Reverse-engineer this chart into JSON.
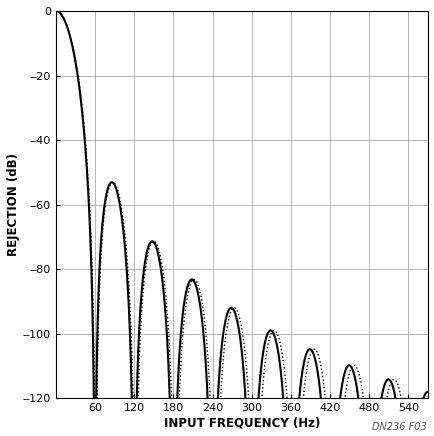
{
  "title": "",
  "xlabel": "INPUT FREQUENCY (Hz)",
  "ylabel": "REJECTION (dB)",
  "annotation": "DN236 F03",
  "xlim": [
    0,
    570
  ],
  "ylim": [
    -120,
    0
  ],
  "yticks": [
    0,
    -20,
    -40,
    -60,
    -80,
    -100,
    -120
  ],
  "ytick_labels": [
    "0",
    "‒20",
    "‒40",
    "‒60",
    "‒80",
    "‒100",
    "‒120"
  ],
  "xticks": [
    60,
    120,
    180,
    240,
    300,
    360,
    420,
    480,
    540
  ],
  "notch_freq": 60.0,
  "notch_freq2": 61.0,
  "sinc_order": 4,
  "line_color": "#000000",
  "bg_color": "#ffffff",
  "grid_color": "#999999",
  "figsize": [
    4.35,
    4.36
  ],
  "dpi": 100
}
